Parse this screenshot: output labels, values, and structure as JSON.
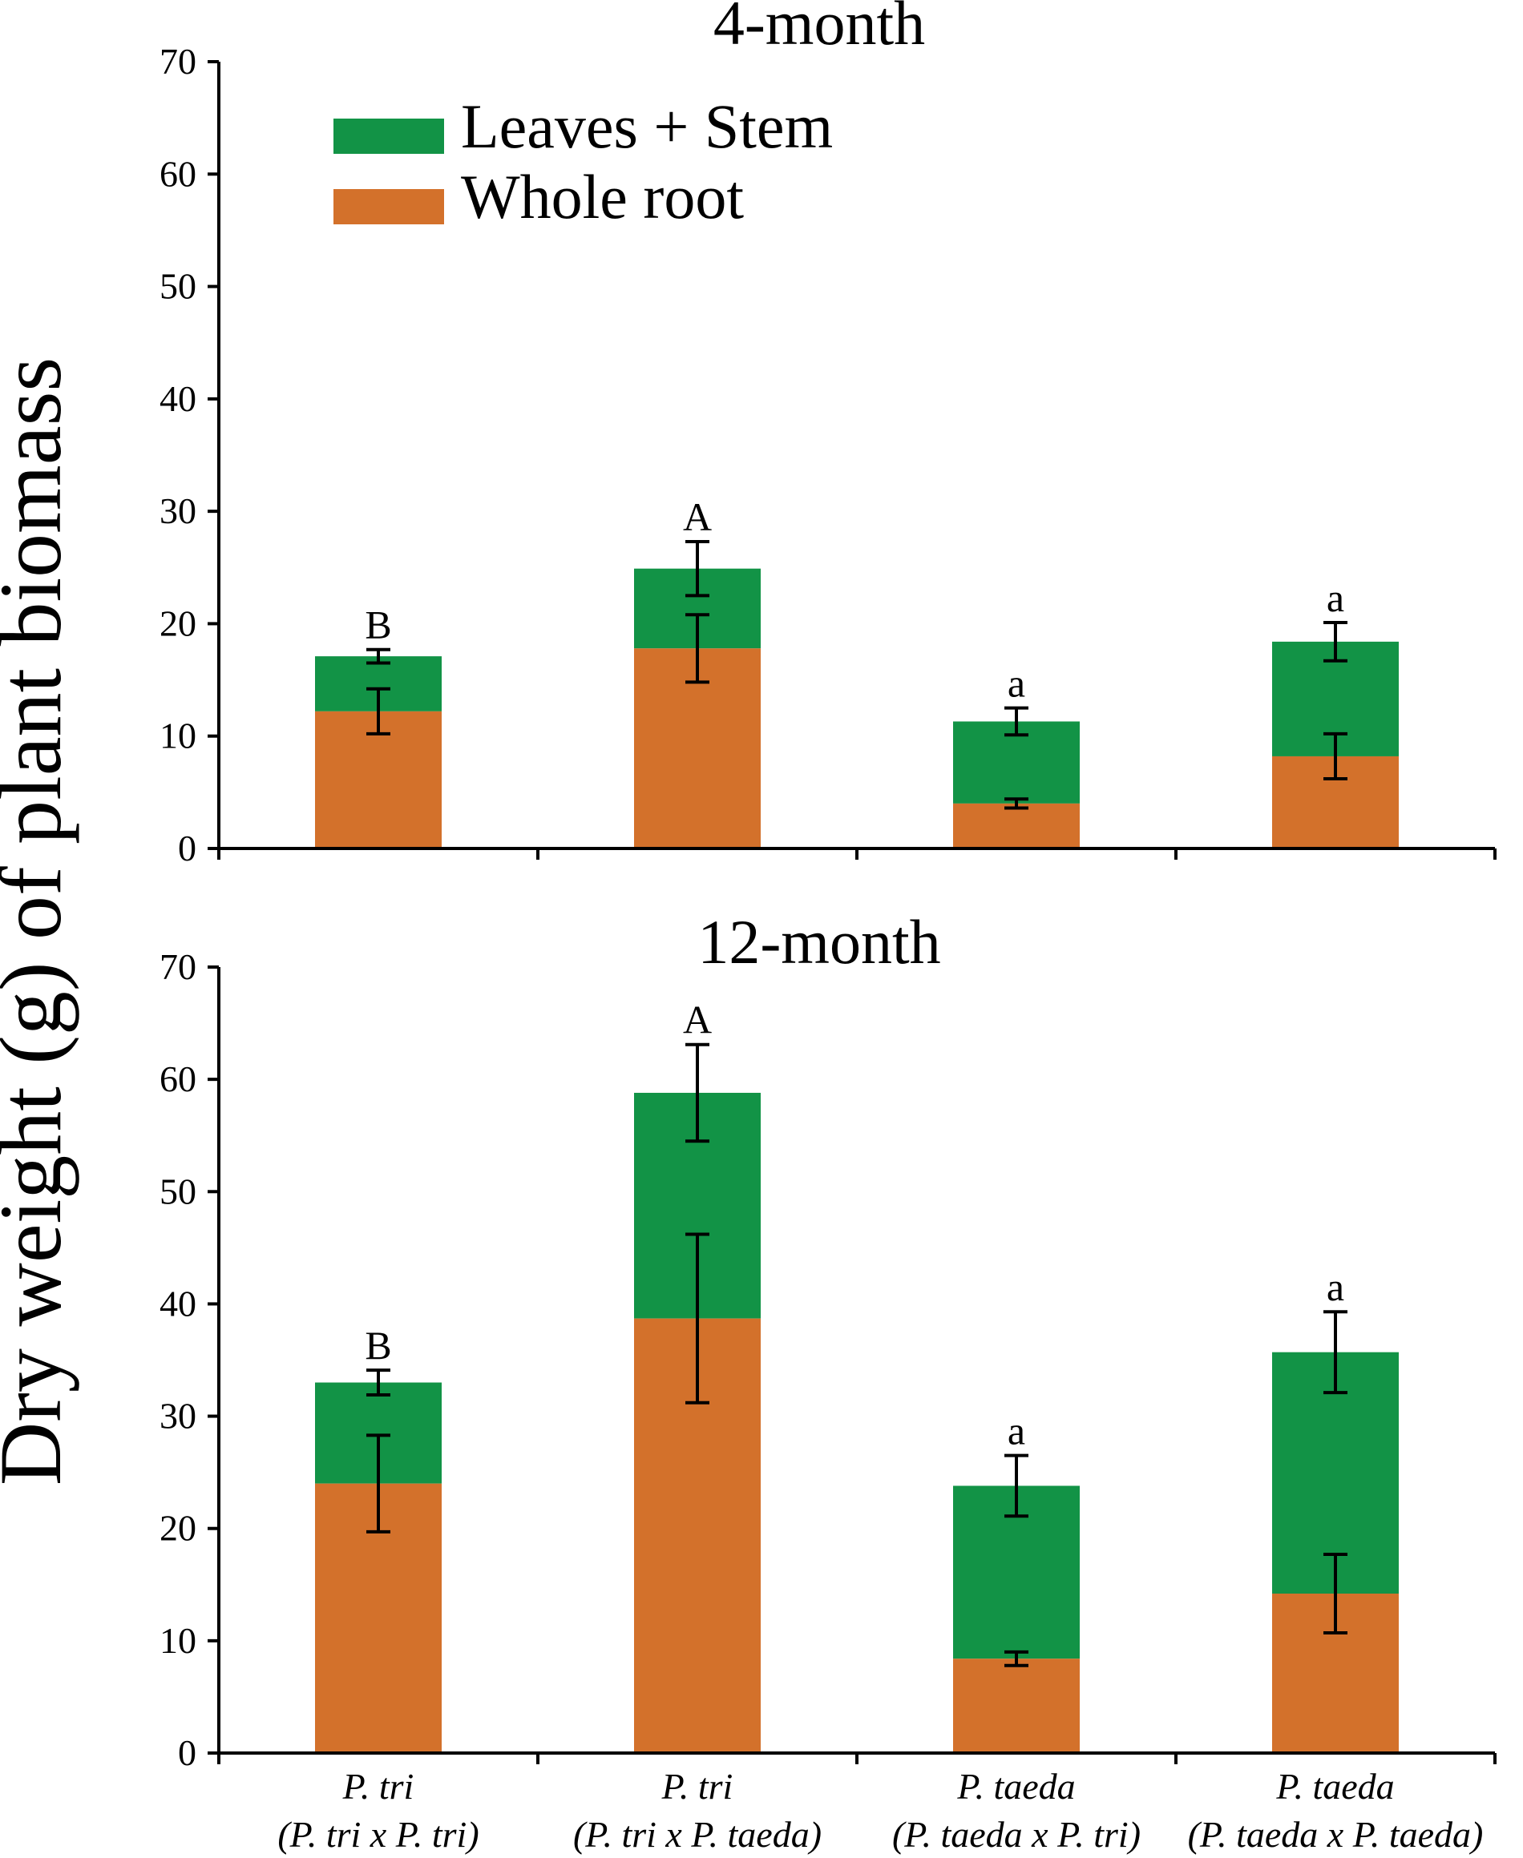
{
  "chart_data": {
    "type": "bar",
    "stacked": true,
    "ylabel": "Dry weight (g) of plant biomass",
    "ylim": [
      0,
      70
    ],
    "yticks": [
      0,
      10,
      20,
      30,
      40,
      50,
      60,
      70
    ],
    "legend": [
      {
        "name": "Leaves + Stem",
        "color": "#129346"
      },
      {
        "name": "Whole root",
        "color": "#D3712B"
      }
    ],
    "categories": [
      {
        "line1": "P. tri",
        "line2": "(P. tri x P. tri)"
      },
      {
        "line1": "P. tri",
        "line2": "(P. tri x P. taeda)"
      },
      {
        "line1": "P. taeda",
        "line2": "(P. taeda x P. tri)"
      },
      {
        "line1": "P. taeda",
        "line2": "(P. taeda x P. taeda)"
      }
    ],
    "panels": [
      {
        "title": "4-month",
        "root": [
          12.2,
          17.8,
          4.0,
          8.2
        ],
        "root_err": [
          2.0,
          3.0,
          0.4,
          2.0
        ],
        "total": [
          17.1,
          24.9,
          11.3,
          18.4
        ],
        "total_err": [
          0.6,
          2.4,
          1.2,
          1.7
        ],
        "letters": [
          "B",
          "A",
          "a",
          "a"
        ]
      },
      {
        "title": "12-month",
        "root": [
          24.0,
          38.7,
          8.4,
          14.2
        ],
        "root_err": [
          4.3,
          7.5,
          0.6,
          3.5
        ],
        "total": [
          33.0,
          58.8,
          23.8,
          35.7
        ],
        "total_err": [
          1.1,
          4.3,
          2.7,
          3.6
        ],
        "letters": [
          "B",
          "A",
          "a",
          "a"
        ]
      }
    ]
  }
}
